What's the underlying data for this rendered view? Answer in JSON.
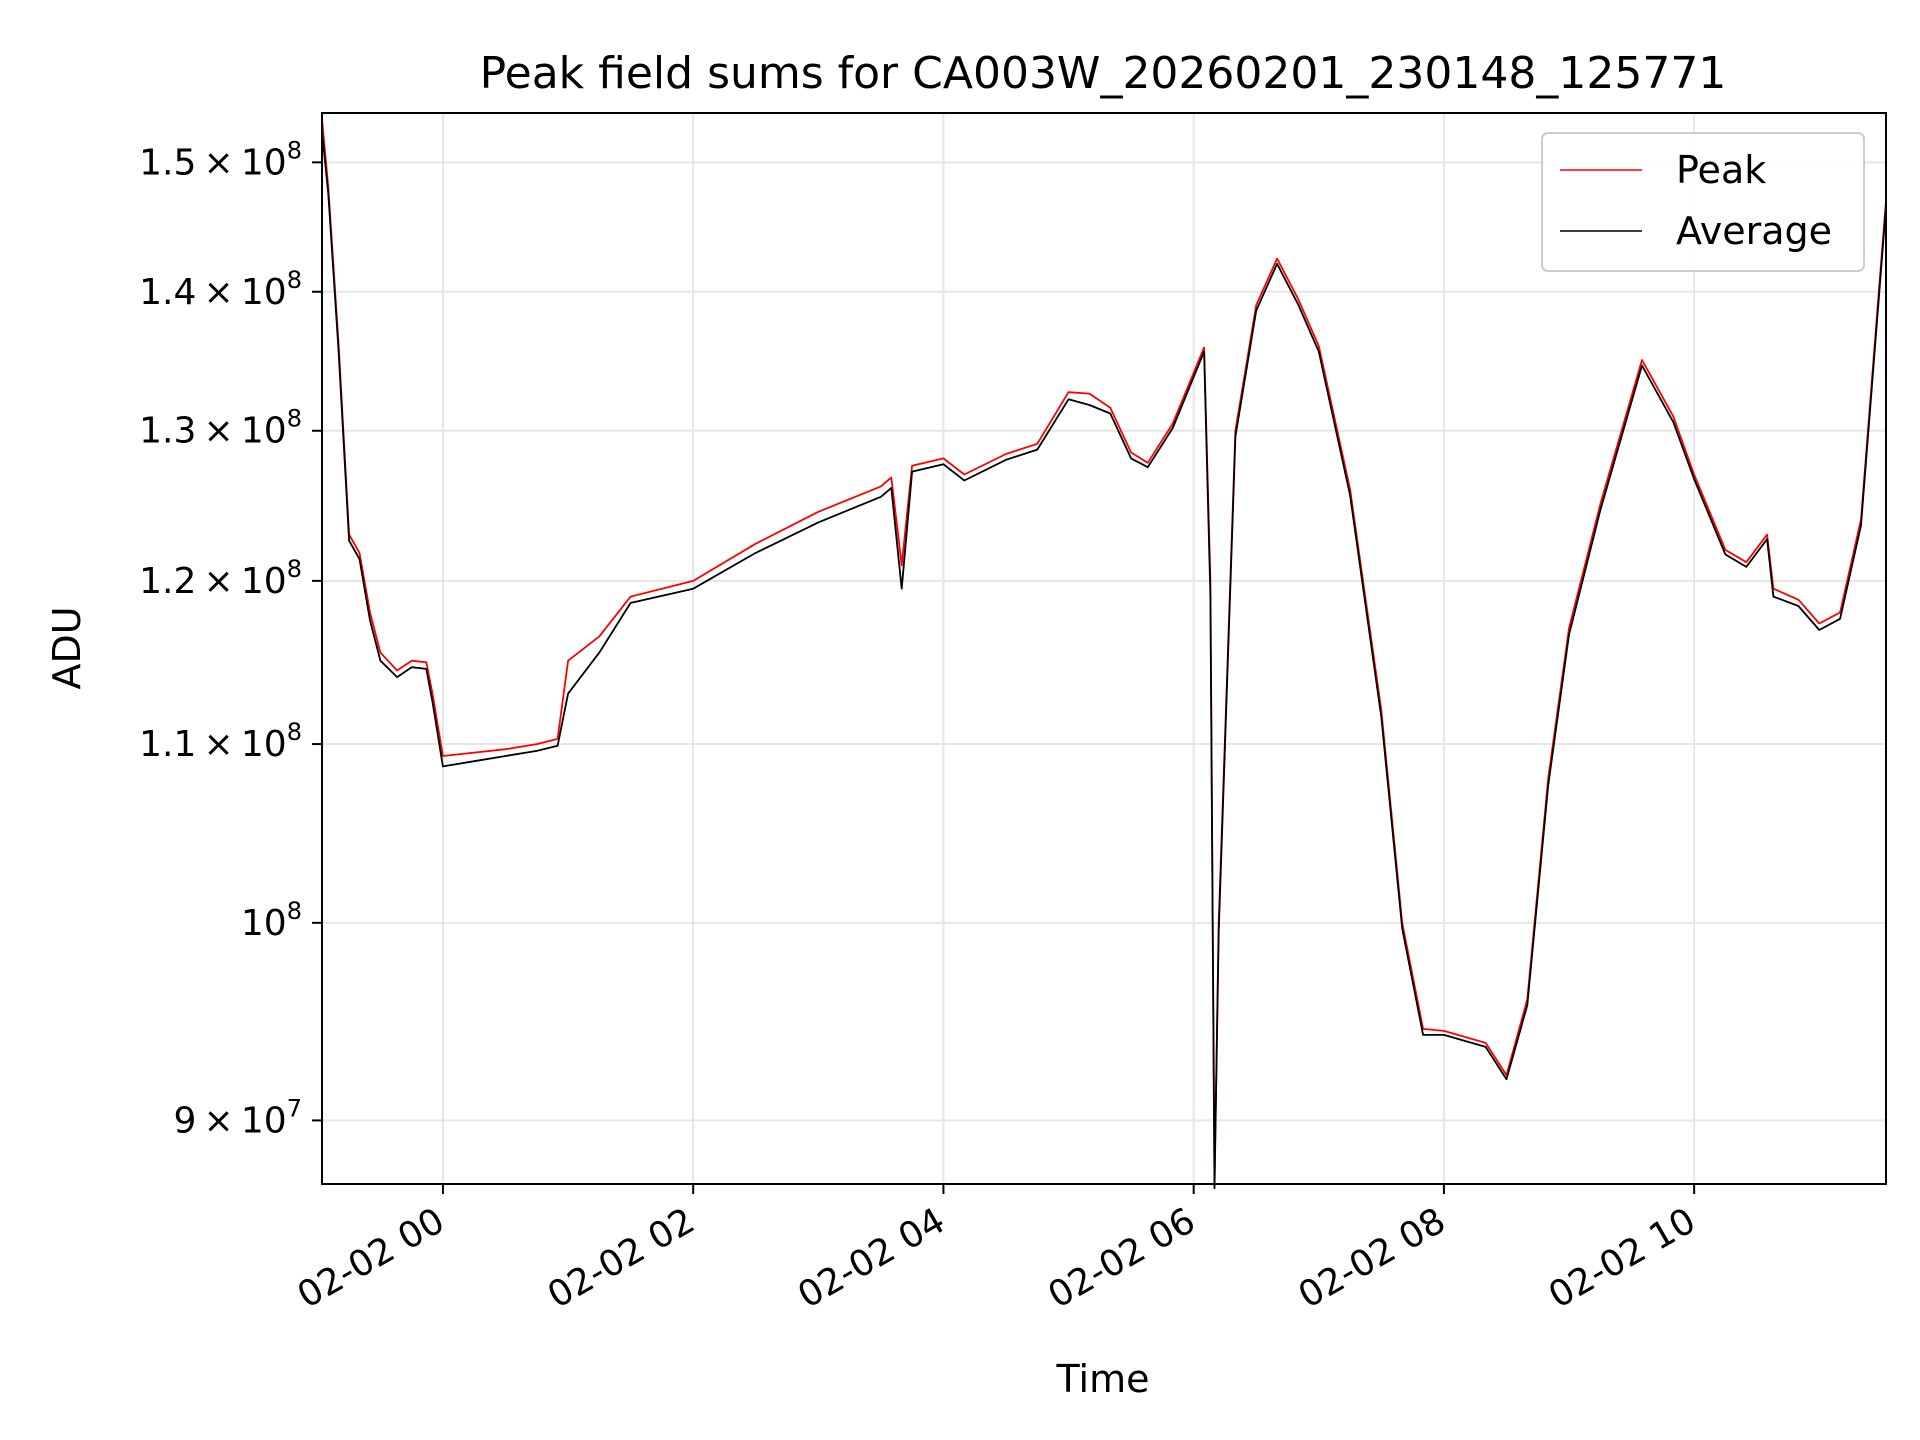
{
  "chart_data": {
    "type": "line",
    "title": "Peak field sums for CA003W_20260201_230148_125771",
    "xlabel": "Time",
    "ylabel": "ADU",
    "yscale": "log",
    "ylim": [
      87000000,
      154000000
    ],
    "xlim": [
      "2026-02-01 23:02",
      "2026-02-02 11:32"
    ],
    "grid": true,
    "legend_position": "top-right",
    "x_ticks": [
      "02-02 00",
      "02-02 02",
      "02-02 04",
      "02-02 06",
      "02-02 08",
      "02-02 10"
    ],
    "x_tick_times": [
      "2026-02-02 00:00",
      "2026-02-02 02:00",
      "2026-02-02 04:00",
      "2026-02-02 06:00",
      "2026-02-02 08:00",
      "2026-02-02 10:00"
    ],
    "y_ticks": [
      {
        "value": 90000000,
        "mant": "9",
        "exp": "7"
      },
      {
        "value": 100000000,
        "mant": "",
        "exp": "8"
      },
      {
        "value": 110000000,
        "mant": "1.1",
        "exp": "8"
      },
      {
        "value": 120000000,
        "mant": "1.2",
        "exp": "8"
      },
      {
        "value": 130000000,
        "mant": "1.3",
        "exp": "8"
      },
      {
        "value": 140000000,
        "mant": "1.4",
        "exp": "8"
      },
      {
        "value": 150000000,
        "mant": "1.5",
        "exp": "8"
      }
    ],
    "series": [
      {
        "name": "Peak",
        "color": "#ff0000",
        "points": [
          [
            "2026-02-01 23:02",
            153500000
          ],
          [
            "2026-02-01 23:05",
            148000000
          ],
          [
            "2026-02-01 23:10",
            136000000
          ],
          [
            "2026-02-01 23:15",
            123000000
          ],
          [
            "2026-02-01 23:20",
            121800000
          ],
          [
            "2026-02-01 23:25",
            118000000
          ],
          [
            "2026-02-01 23:30",
            115500000
          ],
          [
            "2026-02-01 23:38",
            114400000
          ],
          [
            "2026-02-01 23:45",
            115000000
          ],
          [
            "2026-02-01 23:52",
            114900000
          ],
          [
            "2026-02-01 23:55",
            113000000
          ],
          [
            "2026-02-02 00:00",
            109300000
          ],
          [
            "2026-02-02 00:15",
            109500000
          ],
          [
            "2026-02-02 00:30",
            109700000
          ],
          [
            "2026-02-02 00:45",
            110000000
          ],
          [
            "2026-02-02 00:55",
            110300000
          ],
          [
            "2026-02-02 01:00",
            115000000
          ],
          [
            "2026-02-02 01:15",
            116500000
          ],
          [
            "2026-02-02 01:30",
            119000000
          ],
          [
            "2026-02-02 02:00",
            120000000
          ],
          [
            "2026-02-02 02:30",
            122400000
          ],
          [
            "2026-02-02 03:00",
            124500000
          ],
          [
            "2026-02-02 03:30",
            126200000
          ],
          [
            "2026-02-02 03:35",
            126800000
          ],
          [
            "2026-02-02 03:40",
            121000000
          ],
          [
            "2026-02-02 03:45",
            127600000
          ],
          [
            "2026-02-02 04:00",
            128100000
          ],
          [
            "2026-02-02 04:10",
            127000000
          ],
          [
            "2026-02-02 04:30",
            128400000
          ],
          [
            "2026-02-02 04:45",
            129100000
          ],
          [
            "2026-02-02 05:00",
            132700000
          ],
          [
            "2026-02-02 05:10",
            132600000
          ],
          [
            "2026-02-02 05:20",
            131600000
          ],
          [
            "2026-02-02 05:30",
            128500000
          ],
          [
            "2026-02-02 05:38",
            127800000
          ],
          [
            "2026-02-02 05:50",
            130500000
          ],
          [
            "2026-02-02 06:05",
            135900000
          ],
          [
            "2026-02-02 06:08",
            120000000
          ],
          [
            "2026-02-02 06:10",
            87000000
          ],
          [
            "2026-02-02 06:12",
            100000000
          ],
          [
            "2026-02-02 06:20",
            130000000
          ],
          [
            "2026-02-02 06:30",
            139000000
          ],
          [
            "2026-02-02 06:40",
            142500000
          ],
          [
            "2026-02-02 06:50",
            139500000
          ],
          [
            "2026-02-02 07:00",
            136000000
          ],
          [
            "2026-02-02 07:15",
            126000000
          ],
          [
            "2026-02-02 07:30",
            112000000
          ],
          [
            "2026-02-02 07:40",
            100000000
          ],
          [
            "2026-02-02 07:50",
            94500000
          ],
          [
            "2026-02-02 08:00",
            94400000
          ],
          [
            "2026-02-02 08:20",
            93800000
          ],
          [
            "2026-02-02 08:30",
            92200000
          ],
          [
            "2026-02-02 08:40",
            96000000
          ],
          [
            "2026-02-02 08:50",
            108000000
          ],
          [
            "2026-02-02 09:00",
            117000000
          ],
          [
            "2026-02-02 09:15",
            125000000
          ],
          [
            "2026-02-02 09:35",
            135000000
          ],
          [
            "2026-02-02 09:50",
            131000000
          ],
          [
            "2026-02-02 10:00",
            127000000
          ],
          [
            "2026-02-02 10:15",
            122000000
          ],
          [
            "2026-02-02 10:25",
            121200000
          ],
          [
            "2026-02-02 10:35",
            123000000
          ],
          [
            "2026-02-02 10:38",
            119500000
          ],
          [
            "2026-02-02 10:50",
            118800000
          ],
          [
            "2026-02-02 11:00",
            117300000
          ],
          [
            "2026-02-02 11:10",
            118000000
          ],
          [
            "2026-02-02 11:20",
            124000000
          ],
          [
            "2026-02-02 11:32",
            147000000
          ]
        ]
      },
      {
        "name": "Average",
        "color": "#000000",
        "points": [
          [
            "2026-02-01 23:02",
            152500000
          ],
          [
            "2026-02-01 23:05",
            147500000
          ],
          [
            "2026-02-01 23:10",
            135500000
          ],
          [
            "2026-02-01 23:15",
            122600000
          ],
          [
            "2026-02-01 23:20",
            121400000
          ],
          [
            "2026-02-01 23:25",
            117500000
          ],
          [
            "2026-02-01 23:30",
            115000000
          ],
          [
            "2026-02-01 23:38",
            114000000
          ],
          [
            "2026-02-01 23:45",
            114600000
          ],
          [
            "2026-02-01 23:52",
            114500000
          ],
          [
            "2026-02-01 23:55",
            112500000
          ],
          [
            "2026-02-02 00:00",
            108700000
          ],
          [
            "2026-02-02 00:15",
            109000000
          ],
          [
            "2026-02-02 00:30",
            109300000
          ],
          [
            "2026-02-02 00:45",
            109600000
          ],
          [
            "2026-02-02 00:55",
            109900000
          ],
          [
            "2026-02-02 01:00",
            113000000
          ],
          [
            "2026-02-02 01:15",
            115500000
          ],
          [
            "2026-02-02 01:30",
            118600000
          ],
          [
            "2026-02-02 02:00",
            119500000
          ],
          [
            "2026-02-02 02:30",
            121800000
          ],
          [
            "2026-02-02 03:00",
            123800000
          ],
          [
            "2026-02-02 03:30",
            125500000
          ],
          [
            "2026-02-02 03:35",
            126100000
          ],
          [
            "2026-02-02 03:40",
            119500000
          ],
          [
            "2026-02-02 03:45",
            127200000
          ],
          [
            "2026-02-02 04:00",
            127700000
          ],
          [
            "2026-02-02 04:10",
            126600000
          ],
          [
            "2026-02-02 04:30",
            128000000
          ],
          [
            "2026-02-02 04:45",
            128700000
          ],
          [
            "2026-02-02 05:00",
            132200000
          ],
          [
            "2026-02-02 05:10",
            131800000
          ],
          [
            "2026-02-02 05:20",
            131200000
          ],
          [
            "2026-02-02 05:30",
            128100000
          ],
          [
            "2026-02-02 05:38",
            127500000
          ],
          [
            "2026-02-02 05:50",
            130200000
          ],
          [
            "2026-02-02 06:05",
            135600000
          ],
          [
            "2026-02-02 06:08",
            119000000
          ],
          [
            "2026-02-02 06:10",
            86800000
          ],
          [
            "2026-02-02 06:12",
            99500000
          ],
          [
            "2026-02-02 06:20",
            129600000
          ],
          [
            "2026-02-02 06:30",
            138600000
          ],
          [
            "2026-02-02 06:40",
            142100000
          ],
          [
            "2026-02-02 06:50",
            139100000
          ],
          [
            "2026-02-02 07:00",
            135600000
          ],
          [
            "2026-02-02 07:15",
            125600000
          ],
          [
            "2026-02-02 07:30",
            111600000
          ],
          [
            "2026-02-02 07:40",
            99700000
          ],
          [
            "2026-02-02 07:50",
            94200000
          ],
          [
            "2026-02-02 08:00",
            94200000
          ],
          [
            "2026-02-02 08:20",
            93600000
          ],
          [
            "2026-02-02 08:30",
            92000000
          ],
          [
            "2026-02-02 08:40",
            95700000
          ],
          [
            "2026-02-02 08:50",
            107600000
          ],
          [
            "2026-02-02 09:00",
            116600000
          ],
          [
            "2026-02-02 09:15",
            124600000
          ],
          [
            "2026-02-02 09:35",
            134600000
          ],
          [
            "2026-02-02 09:50",
            130600000
          ],
          [
            "2026-02-02 10:00",
            126700000
          ],
          [
            "2026-02-02 10:15",
            121700000
          ],
          [
            "2026-02-02 10:25",
            120900000
          ],
          [
            "2026-02-02 10:35",
            122700000
          ],
          [
            "2026-02-02 10:38",
            119000000
          ],
          [
            "2026-02-02 10:50",
            118400000
          ],
          [
            "2026-02-02 11:00",
            116900000
          ],
          [
            "2026-02-02 11:10",
            117600000
          ],
          [
            "2026-02-02 11:20",
            123600000
          ],
          [
            "2026-02-02 11:32",
            146500000
          ]
        ]
      }
    ]
  }
}
